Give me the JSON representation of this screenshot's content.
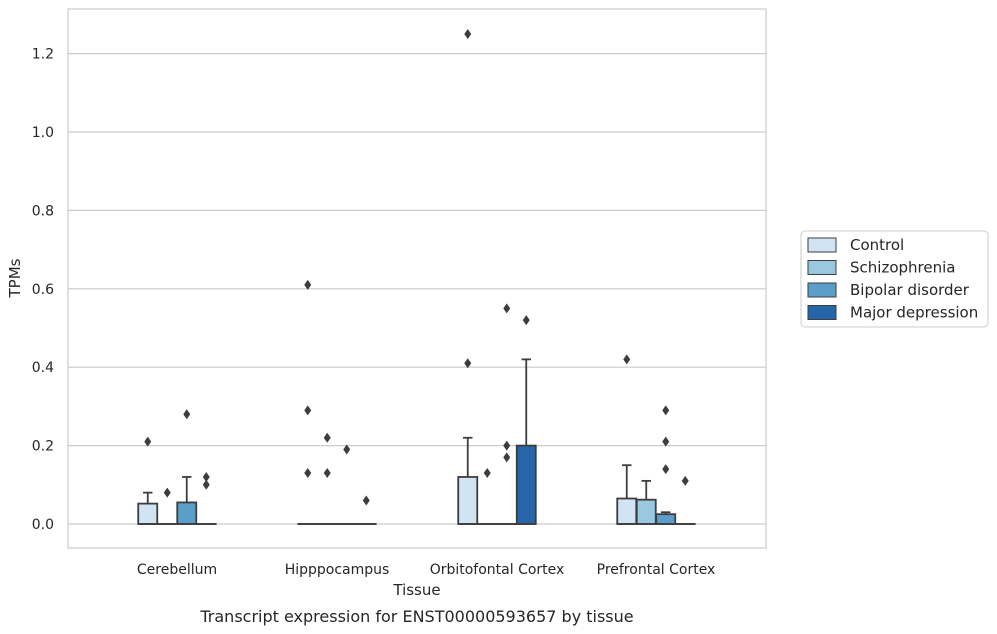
{
  "chart_data": {
    "type": "box",
    "xlabel": "Tissue",
    "ylabel": "TPMs",
    "caption": "Transcript expression for ENST00000593657 by tissue",
    "ylim": [
      -0.06,
      1.32
    ],
    "yticks": [
      0.0,
      0.2,
      0.4,
      0.6,
      0.8,
      1.0,
      1.2
    ],
    "ytick_labels": [
      "0.0",
      "0.2",
      "0.4",
      "0.6",
      "0.8",
      "1.0",
      "1.2"
    ],
    "grid": "horizontal",
    "legend_position": "right",
    "categories": [
      "Cerebellum",
      "Hipppocampus",
      "Orbitofontal Cortex",
      "Prefrontal Cortex"
    ],
    "series": [
      {
        "name": "Control",
        "color": "#d2e3f3",
        "boxes": [
          {
            "q1": 0.0,
            "median": 0.0,
            "q3": 0.052,
            "whisker_low": 0.0,
            "whisker_high": 0.08,
            "outliers": [
              0.21
            ]
          },
          {
            "q1": 0.0,
            "median": 0.0,
            "q3": 0.0,
            "whisker_low": 0.0,
            "whisker_high": 0.0,
            "outliers": [
              0.61,
              0.29,
              0.13
            ]
          },
          {
            "q1": 0.0,
            "median": 0.0,
            "q3": 0.12,
            "whisker_low": 0.0,
            "whisker_high": 0.22,
            "outliers": [
              1.25,
              0.41
            ]
          },
          {
            "q1": 0.0,
            "median": 0.0,
            "q3": 0.065,
            "whisker_low": 0.0,
            "whisker_high": 0.15,
            "outliers": [
              0.42
            ]
          }
        ]
      },
      {
        "name": "Schizophrenia",
        "color": "#9ac8e0",
        "boxes": [
          {
            "q1": 0.0,
            "median": 0.0,
            "q3": 0.0,
            "whisker_low": 0.0,
            "whisker_high": 0.0,
            "outliers": [
              0.08
            ]
          },
          {
            "q1": 0.0,
            "median": 0.0,
            "q3": 0.0,
            "whisker_low": 0.0,
            "whisker_high": 0.0,
            "outliers": [
              0.22,
              0.13
            ]
          },
          {
            "q1": 0.0,
            "median": 0.0,
            "q3": 0.0,
            "whisker_low": 0.0,
            "whisker_high": 0.0,
            "outliers": [
              0.13
            ]
          },
          {
            "q1": 0.0,
            "median": 0.0,
            "q3": 0.062,
            "whisker_low": 0.0,
            "whisker_high": 0.11,
            "outliers": []
          }
        ]
      },
      {
        "name": "Bipolar disorder",
        "color": "#5a9ec9",
        "boxes": [
          {
            "q1": 0.0,
            "median": 0.0,
            "q3": 0.055,
            "whisker_low": 0.0,
            "whisker_high": 0.12,
            "outliers": [
              0.28
            ]
          },
          {
            "q1": 0.0,
            "median": 0.0,
            "q3": 0.0,
            "whisker_low": 0.0,
            "whisker_high": 0.0,
            "outliers": [
              0.19
            ]
          },
          {
            "q1": 0.0,
            "median": 0.0,
            "q3": 0.0,
            "whisker_low": 0.0,
            "whisker_high": 0.0,
            "outliers": [
              0.55,
              0.2,
              0.17
            ]
          },
          {
            "q1": 0.0,
            "median": 0.0,
            "q3": 0.025,
            "whisker_low": 0.0,
            "whisker_high": 0.03,
            "outliers": [
              0.29,
              0.21,
              0.14
            ]
          }
        ]
      },
      {
        "name": "Major depression",
        "color": "#2565a8",
        "boxes": [
          {
            "q1": 0.0,
            "median": 0.0,
            "q3": 0.0,
            "whisker_low": 0.0,
            "whisker_high": 0.0,
            "outliers": [
              0.12,
              0.1
            ]
          },
          {
            "q1": 0.0,
            "median": 0.0,
            "q3": 0.0,
            "whisker_low": 0.0,
            "whisker_high": 0.0,
            "outliers": [
              0.06
            ]
          },
          {
            "q1": 0.0,
            "median": 0.0,
            "q3": 0.2,
            "whisker_low": 0.0,
            "whisker_high": 0.42,
            "outliers": [
              0.52
            ]
          },
          {
            "q1": 0.0,
            "median": 0.0,
            "q3": 0.0,
            "whisker_low": 0.0,
            "whisker_high": 0.0,
            "outliers": [
              0.11
            ]
          }
        ]
      }
    ]
  }
}
